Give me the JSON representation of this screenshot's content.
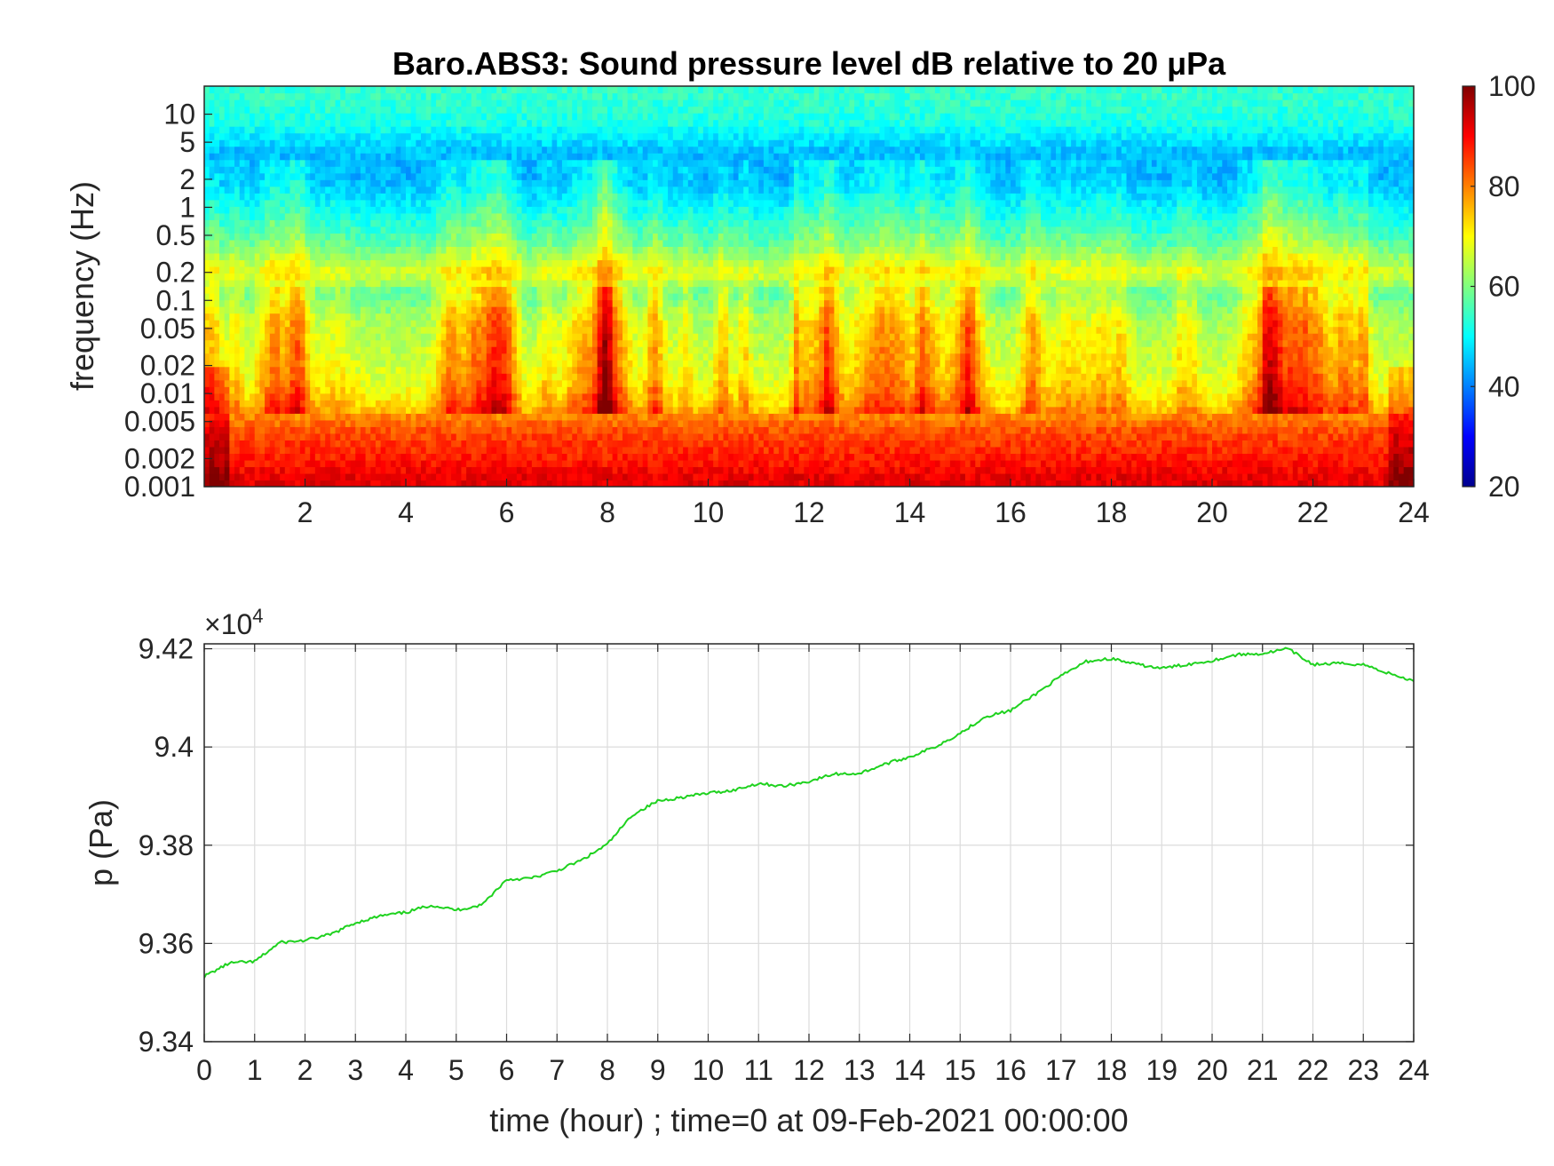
{
  "colors": {
    "background": "#ffffff",
    "axis": "#262626",
    "grid": "#dcdcdc",
    "pressure_line": "#1fd21f",
    "colormap": "jet"
  },
  "chart_data": [
    {
      "type": "heatmap",
      "title": "Baro.ABS3: Sound pressure level dB relative to 20 μPa",
      "xlabel": "",
      "ylabel": "frequency (Hz)",
      "xlim": [
        0,
        24
      ],
      "x_ticks": [
        2,
        4,
        6,
        8,
        10,
        12,
        14,
        16,
        18,
        20,
        22,
        24
      ],
      "y_scale": "log",
      "ylim": [
        0.001,
        20
      ],
      "y_ticks": [
        0.001,
        0.002,
        0.005,
        0.01,
        0.02,
        0.05,
        0.1,
        0.2,
        0.5,
        1,
        2,
        5,
        10
      ],
      "y_tick_labels": [
        "0.001",
        "0.002",
        "0.005",
        "0.01",
        "0.02",
        "0.05",
        "0.1",
        "0.2",
        "0.5",
        "1",
        "2",
        "5",
        "10"
      ],
      "colorbar": {
        "label": "",
        "limits": [
          20,
          100
        ],
        "ticks": [
          20,
          40,
          60,
          80,
          100
        ],
        "placement": "right"
      },
      "band_levels_db": [
        {
          "frequency_hz": 0.0012,
          "level_db": 92
        },
        {
          "frequency_hz": 0.002,
          "level_db": 88
        },
        {
          "frequency_hz": 0.004,
          "level_db": 84
        },
        {
          "frequency_hz": 0.008,
          "level_db": 75
        },
        {
          "frequency_hz": 0.015,
          "level_db": 70
        },
        {
          "frequency_hz": 0.03,
          "level_db": 68
        },
        {
          "frequency_hz": 0.06,
          "level_db": 66
        },
        {
          "frequency_hz": 0.12,
          "level_db": 60
        },
        {
          "frequency_hz": 0.2,
          "level_db": 68
        },
        {
          "frequency_hz": 0.4,
          "level_db": 58
        },
        {
          "frequency_hz": 0.8,
          "level_db": 52
        },
        {
          "frequency_hz": 2,
          "level_db": 45
        },
        {
          "frequency_hz": 4,
          "level_db": 45
        },
        {
          "frequency_hz": 8,
          "level_db": 52
        },
        {
          "frequency_hz": 15,
          "level_db": 54
        }
      ]
    },
    {
      "type": "line",
      "title": "",
      "xlabel": "time (hour) ; time=0 at 09-Feb-2021 00:00:00",
      "ylabel": "p (Pa)",
      "xlim": [
        0,
        24
      ],
      "x_ticks": [
        0,
        1,
        2,
        3,
        4,
        5,
        6,
        7,
        8,
        9,
        10,
        11,
        12,
        13,
        14,
        15,
        16,
        17,
        18,
        19,
        20,
        21,
        22,
        23,
        24
      ],
      "ylim": [
        93400,
        94210
      ],
      "y_ticks": [
        93400,
        93600,
        93800,
        94000,
        94200
      ],
      "y_tick_labels": [
        "9.34",
        "9.36",
        "9.38",
        "9.4",
        "9.42"
      ],
      "y_exponent_label": "×10",
      "y_exponent": "4",
      "grid": true,
      "series": [
        {
          "x": [
            0,
            0.5,
            1,
            1.5,
            2,
            2.5,
            3,
            3.5,
            4,
            4.5,
            5,
            5.5,
            6,
            6.5,
            7,
            7.5,
            8,
            8.5,
            9,
            9.5,
            10,
            10.5,
            11,
            11.5,
            12,
            12.5,
            13,
            13.5,
            14,
            14.5,
            15,
            15.5,
            16,
            16.5,
            17,
            17.5,
            18,
            18.5,
            19,
            19.5,
            20,
            20.5,
            21,
            21.5,
            22,
            22.5,
            23,
            23.5,
            24
          ],
          "y": [
            93533,
            93560,
            93563,
            93602,
            93606,
            93618,
            93642,
            93656,
            93663,
            93678,
            93668,
            93678,
            93730,
            93733,
            93748,
            93770,
            93802,
            93862,
            93890,
            93898,
            93906,
            93912,
            93926,
            93920,
            93930,
            93945,
            93946,
            93965,
            93980,
            94000,
            94028,
            94062,
            94074,
            94108,
            94144,
            94174,
            94180,
            94168,
            94160,
            94168,
            94176,
            94188,
            94190,
            94200,
            94168,
            94170,
            94168,
            94150,
            94134
          ]
        }
      ]
    }
  ]
}
